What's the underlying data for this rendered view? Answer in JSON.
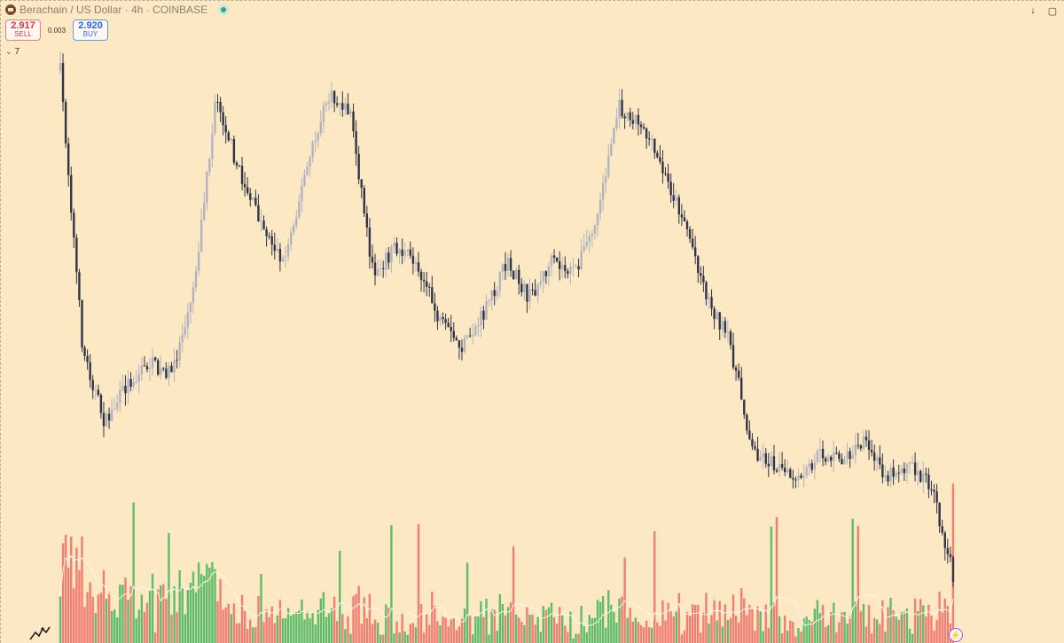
{
  "header": {
    "symbol_label": "Berachain / US Dollar · 4h · COINBASE"
  },
  "trade": {
    "sell_price": "2.917",
    "sell_label": "SELL",
    "spread": "0.003",
    "buy_price": "2.920",
    "buy_label": "BUY"
  },
  "indicators": {
    "count": "7"
  },
  "toolbar": {
    "download_icon": "↓",
    "screenshot_icon": "▢"
  },
  "chart_data": {
    "type": "candlestick",
    "interval": "4h",
    "exchange": "COINBASE",
    "price_path": [
      1.0,
      0.45,
      0.3,
      0.38,
      0.42,
      0.4,
      0.58,
      0.95,
      0.8,
      0.7,
      0.62,
      0.8,
      0.95,
      0.92,
      0.6,
      0.65,
      0.62,
      0.5,
      0.45,
      0.52,
      0.62,
      0.55,
      0.62,
      0.6,
      0.7,
      0.93,
      0.9,
      0.8,
      0.7,
      0.55,
      0.46,
      0.25,
      0.22,
      0.18,
      0.24,
      0.23,
      0.26,
      0.2,
      0.22,
      0.18,
      0.0
    ],
    "volume_note": "volume histogram with moving average line",
    "colors": {
      "up_candle": "#b0b4bf",
      "down_candle": "#2f3447",
      "volume_up": "#5ebd6a",
      "volume_down": "#f07e72",
      "volume_ma": "#fff5e6",
      "background": "#fde8c4"
    }
  }
}
